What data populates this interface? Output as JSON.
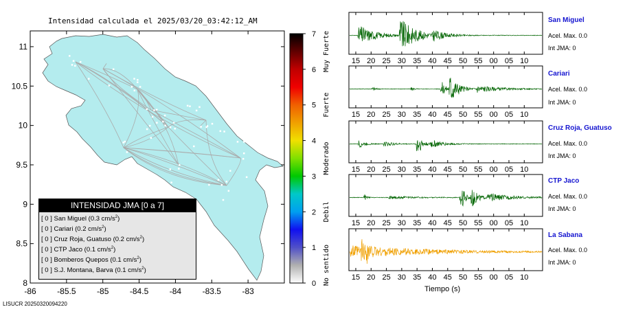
{
  "map_title": "Intensidad calculada el 2025/03/20_03:42:12_AM",
  "footer": "LISUCR 20250320094220",
  "legend": {
    "title": "INTENSIDAD JMA [0 a 7]",
    "rows": [
      {
        "jma": "[ 0 ]",
        "station": "San Miguel",
        "accel": "(0.3 cm/s",
        "unit_exp": "2",
        "close": ")"
      },
      {
        "jma": "[ 0 ]",
        "station": "Cariari",
        "accel": "(0.2 cm/s",
        "unit_exp": "2",
        "close": ")"
      },
      {
        "jma": "[ 0 ]",
        "station": "Cruz Roja, Guatuso",
        "accel": "(0.2 cm/s",
        "unit_exp": "2",
        "close": ")"
      },
      {
        "jma": "[ 0 ]",
        "station": "CTP Jaco",
        "accel": "(0.1 cm/s",
        "unit_exp": "2",
        "close": ")"
      },
      {
        "jma": "[ 0 ]",
        "station": "Bomberos Quepos",
        "accel": "(0.1 cm/s",
        "unit_exp": "2",
        "close": ")"
      },
      {
        "jma": "[ 0 ]",
        "station": "S.J. Montana, Barva",
        "accel": "(0.1 cm/s",
        "unit_exp": "2",
        "close": ")"
      }
    ]
  },
  "colorbar": {
    "ticks": [
      "0",
      "1",
      "2",
      "3",
      "4",
      "5",
      "6",
      "7"
    ],
    "labels": [
      {
        "text": "No sentido",
        "from": 0,
        "to": 1
      },
      {
        "text": "Debil",
        "from": 1,
        "to": 3
      },
      {
        "text": "Moderado",
        "from": 3,
        "to": 4
      },
      {
        "text": "Fuerte",
        "from": 4,
        "to": 6
      },
      {
        "text": "Muy Fuerte",
        "from": 6,
        "to": 7
      }
    ],
    "colors": [
      "#ffffff",
      "#b0b0b0",
      "#5050c8",
      "#1010f0",
      "#00a0f0",
      "#00c8c8",
      "#00c800",
      "#80e000",
      "#f0e000",
      "#f0a000",
      "#f06000",
      "#f00000",
      "#c00000",
      "#600000",
      "#000000"
    ]
  },
  "stations": [
    {
      "name": "San Miguel",
      "accel_label": "Acel. Max. 0.0",
      "int_label": "Int JMA: 0",
      "color": "#006400"
    },
    {
      "name": "Cariari",
      "accel_label": "Acel. Max. 0.0",
      "int_label": "Int JMA: 0",
      "color": "#006400"
    },
    {
      "name": "Cruz Roja, Guatuso",
      "accel_label": "Acel. Max. 0.0",
      "int_label": "Int JMA: 0",
      "color": "#006400"
    },
    {
      "name": "CTP Jaco",
      "accel_label": "Acel. Max. 0.0",
      "int_label": "Int JMA: 0",
      "color": "#006400"
    },
    {
      "name": "La Sabana",
      "accel_label": "Acel. Max. 0.0",
      "int_label": "Int JMA: 0",
      "color": "#f0a000"
    }
  ],
  "chart_data": [
    {
      "type": "scatter",
      "title": "Intensidad calculada el 2025/03/20_03:42:12_AM",
      "xlim": [
        -86,
        -82.5
      ],
      "ylim": [
        8,
        11.2
      ],
      "xticks": [
        "-86",
        "-85.5",
        "-85",
        "-84.5",
        "-84",
        "-83.5",
        "-83"
      ],
      "yticks": [
        "8",
        "8.5",
        "9",
        "9.5",
        "10",
        "10.5",
        "11"
      ],
      "land_color": "#b4ecee"
    },
    {
      "type": "line",
      "xlabel": "Tiempo (s)",
      "xticks": [
        "15",
        "20",
        "25",
        "30",
        "35",
        "40",
        "45",
        "50",
        "55",
        "00",
        "05",
        "10"
      ],
      "traces": [
        {
          "station": "San Miguel",
          "bursts": [
            {
              "t": 3,
              "a": 0.6,
              "d": 14
            },
            {
              "t": 18,
              "a": 0.95,
              "d": 14
            },
            {
              "t": 30,
              "a": 0.25,
              "d": 10
            }
          ]
        },
        {
          "station": "Cariari",
          "bursts": [
            {
              "t": 8,
              "a": 0.15,
              "d": 3
            },
            {
              "t": 22,
              "a": 0.12,
              "d": 3
            },
            {
              "t": 33,
              "a": 0.55,
              "d": 4
            },
            {
              "t": 36,
              "a": 1.0,
              "d": 7
            },
            {
              "t": 46,
              "a": 0.2,
              "d": 20
            }
          ]
        },
        {
          "station": "Cruz Roja, Guatuso",
          "bursts": [
            {
              "t": 3,
              "a": 0.3,
              "d": 5
            },
            {
              "t": 12,
              "a": 0.18,
              "d": 8
            },
            {
              "t": 24,
              "a": 1.0,
              "d": 4
            },
            {
              "t": 29,
              "a": 0.25,
              "d": 11
            }
          ]
        },
        {
          "station": "CTP Jaco",
          "bursts": [
            {
              "t": 5,
              "a": 0.3,
              "d": 2
            },
            {
              "t": 14,
              "a": 0.08,
              "d": 24
            },
            {
              "t": 40,
              "a": 0.95,
              "d": 4
            },
            {
              "t": 44,
              "a": 0.55,
              "d": 6
            },
            {
              "t": 50,
              "a": 0.2,
              "d": 24
            }
          ]
        },
        {
          "station": "La Sabana",
          "bursts": [
            {
              "t": 0,
              "a": 0.35,
              "d": 70
            },
            {
              "t": 4,
              "a": 0.9,
              "d": 2
            },
            {
              "t": 6,
              "a": 0.75,
              "d": 2
            }
          ]
        }
      ]
    }
  ]
}
